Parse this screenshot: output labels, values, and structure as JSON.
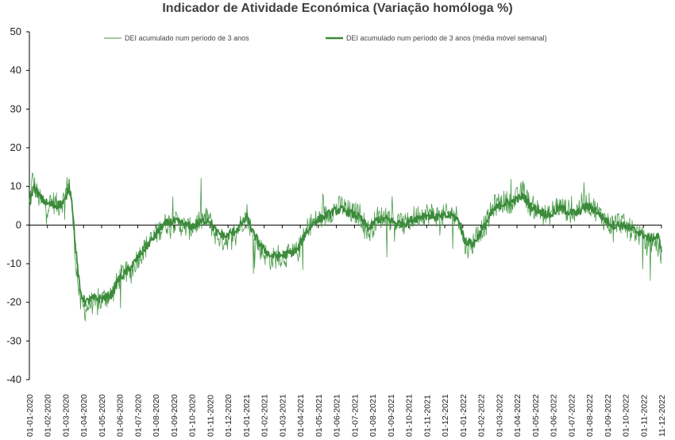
{
  "chart_data": {
    "type": "line",
    "title": "Indicador de Atividade Económica (Variação homóloga %)",
    "ylim": [
      -40,
      50
    ],
    "yticks": [
      -40,
      -30,
      -20,
      -10,
      0,
      10,
      20,
      30,
      40,
      50
    ],
    "x_start": "2020-01-01",
    "x_end": "2022-12-11",
    "x_tick_labels": [
      "01-01-2020",
      "01-02-2020",
      "01-03-2020",
      "01-04-2020",
      "01-05-2020",
      "01-06-2020",
      "01-07-2020",
      "01-08-2020",
      "01-09-2020",
      "01-10-2020",
      "01-11-2020",
      "01-12-2020",
      "01-01-2021",
      "01-02-2021",
      "01-03-2021",
      "01-04-2021",
      "01-05-2021",
      "01-06-2021",
      "01-07-2021",
      "01-08-2021",
      "01-09-2021",
      "01-10-2021",
      "01-11-2021",
      "01-12-2021",
      "01-01-2022",
      "01-02-2022",
      "01-03-2022",
      "01-04-2022",
      "01-05-2022",
      "01-06-2022",
      "01-07-2022",
      "01-08-2022",
      "01-09-2022",
      "01-10-2022",
      "01-11-2022",
      "11-12-2022"
    ],
    "legend_position": "top",
    "series": [
      {
        "name": "DEI acumulado num período de 3 anos",
        "color": "#4a9a4a",
        "style": "thin",
        "daily": true,
        "points": [
          [
            "2020-01-01",
            5
          ],
          [
            "2020-01-06",
            12
          ],
          [
            "2020-01-12",
            9
          ],
          [
            "2020-01-20",
            6
          ],
          [
            "2020-02-01",
            5
          ],
          [
            "2020-02-10",
            6
          ],
          [
            "2020-02-20",
            5
          ],
          [
            "2020-03-01",
            7
          ],
          [
            "2020-03-08",
            12
          ],
          [
            "2020-03-13",
            6
          ],
          [
            "2020-03-19",
            -8
          ],
          [
            "2020-03-27",
            -20
          ],
          [
            "2020-04-05",
            -22
          ],
          [
            "2020-04-15",
            -20
          ],
          [
            "2020-04-25",
            -21
          ],
          [
            "2020-05-05",
            -19
          ],
          [
            "2020-05-20",
            -18
          ],
          [
            "2020-06-01",
            -14
          ],
          [
            "2020-06-10",
            -12
          ],
          [
            "2020-06-20",
            -13
          ],
          [
            "2020-07-01",
            -9
          ],
          [
            "2020-07-15",
            -6
          ],
          [
            "2020-08-01",
            -3
          ],
          [
            "2020-08-15",
            0
          ],
          [
            "2020-09-01",
            1
          ],
          [
            "2020-09-15",
            0
          ],
          [
            "2020-10-01",
            -1
          ],
          [
            "2020-10-15",
            1
          ],
          [
            "2020-11-01",
            2
          ],
          [
            "2020-11-10",
            -2
          ],
          [
            "2020-11-25",
            -4
          ],
          [
            "2020-12-10",
            -3
          ],
          [
            "2020-12-25",
            0
          ],
          [
            "2021-01-05",
            3
          ],
          [
            "2021-01-15",
            -3
          ],
          [
            "2021-02-01",
            -7
          ],
          [
            "2021-02-15",
            -9
          ],
          [
            "2021-03-01",
            -8
          ],
          [
            "2021-03-15",
            -8
          ],
          [
            "2021-04-01",
            -7
          ],
          [
            "2021-04-10",
            -4
          ],
          [
            "2021-04-20",
            0
          ],
          [
            "2021-05-01",
            1
          ],
          [
            "2021-05-15",
            2
          ],
          [
            "2021-06-01",
            4
          ],
          [
            "2021-06-15",
            5
          ],
          [
            "2021-07-01",
            3
          ],
          [
            "2021-07-15",
            3
          ],
          [
            "2021-08-01",
            -2
          ],
          [
            "2021-08-15",
            2
          ],
          [
            "2021-09-01",
            2
          ],
          [
            "2021-09-15",
            1
          ],
          [
            "2021-10-01",
            0
          ],
          [
            "2021-10-15",
            2
          ],
          [
            "2021-11-01",
            3
          ],
          [
            "2021-11-15",
            3
          ],
          [
            "2021-12-01",
            2
          ],
          [
            "2021-12-15",
            3
          ],
          [
            "2022-01-01",
            2
          ],
          [
            "2022-01-10",
            -5
          ],
          [
            "2022-01-20",
            -6
          ],
          [
            "2022-02-01",
            -2
          ],
          [
            "2022-02-15",
            0
          ],
          [
            "2022-03-01",
            5
          ],
          [
            "2022-03-15",
            6
          ],
          [
            "2022-04-01",
            6
          ],
          [
            "2022-04-10",
            7
          ],
          [
            "2022-04-20",
            9
          ],
          [
            "2022-05-01",
            5
          ],
          [
            "2022-05-15",
            4
          ],
          [
            "2022-06-01",
            2
          ],
          [
            "2022-06-15",
            5
          ],
          [
            "2022-07-01",
            4
          ],
          [
            "2022-07-15",
            3
          ],
          [
            "2022-08-01",
            6
          ],
          [
            "2022-08-15",
            5
          ],
          [
            "2022-09-01",
            2
          ],
          [
            "2022-09-15",
            0
          ],
          [
            "2022-10-01",
            1
          ],
          [
            "2022-10-15",
            -1
          ],
          [
            "2022-11-01",
            -2
          ],
          [
            "2022-11-15",
            -5
          ],
          [
            "2022-12-01",
            -4
          ],
          [
            "2022-12-11",
            -8
          ]
        ]
      },
      {
        "name": "DEI acumulado num período de 3 anos (média móvel semanal)",
        "color": "#3a8a3a",
        "style": "thick",
        "daily": false,
        "points": [
          [
            "2020-01-01",
            5
          ],
          [
            "2020-01-08",
            10
          ],
          [
            "2020-01-20",
            7
          ],
          [
            "2020-02-01",
            5.5
          ],
          [
            "2020-02-15",
            5
          ],
          [
            "2020-03-01",
            6
          ],
          [
            "2020-03-08",
            10
          ],
          [
            "2020-03-13",
            7
          ],
          [
            "2020-03-19",
            -5
          ],
          [
            "2020-03-27",
            -17
          ],
          [
            "2020-04-05",
            -20
          ],
          [
            "2020-04-20",
            -19
          ],
          [
            "2020-05-05",
            -19
          ],
          [
            "2020-05-20",
            -18
          ],
          [
            "2020-06-01",
            -14
          ],
          [
            "2020-06-15",
            -12
          ],
          [
            "2020-07-01",
            -9
          ],
          [
            "2020-07-15",
            -6
          ],
          [
            "2020-08-01",
            -3
          ],
          [
            "2020-08-15",
            0
          ],
          [
            "2020-09-01",
            1
          ],
          [
            "2020-09-15",
            0.5
          ],
          [
            "2020-10-01",
            -0.5
          ],
          [
            "2020-10-15",
            0.5
          ],
          [
            "2020-11-01",
            1.5
          ],
          [
            "2020-11-15",
            -2
          ],
          [
            "2020-12-01",
            -3
          ],
          [
            "2020-12-20",
            -1
          ],
          [
            "2021-01-05",
            2
          ],
          [
            "2021-01-15",
            -2
          ],
          [
            "2021-02-01",
            -6
          ],
          [
            "2021-02-15",
            -8
          ],
          [
            "2021-03-01",
            -8
          ],
          [
            "2021-03-15",
            -7.5
          ],
          [
            "2021-04-01",
            -6.5
          ],
          [
            "2021-04-15",
            -2
          ],
          [
            "2021-05-01",
            1
          ],
          [
            "2021-05-15",
            2
          ],
          [
            "2021-06-01",
            3.5
          ],
          [
            "2021-06-15",
            4
          ],
          [
            "2021-07-01",
            3
          ],
          [
            "2021-07-15",
            2
          ],
          [
            "2021-08-01",
            -1
          ],
          [
            "2021-08-15",
            1.5
          ],
          [
            "2021-09-01",
            1.5
          ],
          [
            "2021-09-15",
            0.5
          ],
          [
            "2021-10-01",
            0.5
          ],
          [
            "2021-10-15",
            1.5
          ],
          [
            "2021-11-01",
            2.5
          ],
          [
            "2021-11-15",
            2.5
          ],
          [
            "2021-12-01",
            2
          ],
          [
            "2021-12-20",
            2.5
          ],
          [
            "2022-01-01",
            1
          ],
          [
            "2022-01-10",
            -4
          ],
          [
            "2022-01-25",
            -5
          ],
          [
            "2022-02-10",
            -1
          ],
          [
            "2022-03-01",
            4
          ],
          [
            "2022-03-15",
            5.5
          ],
          [
            "2022-04-01",
            6
          ],
          [
            "2022-04-20",
            7.5
          ],
          [
            "2022-05-05",
            4.5
          ],
          [
            "2022-05-20",
            3.5
          ],
          [
            "2022-06-05",
            2.5
          ],
          [
            "2022-06-20",
            4.5
          ],
          [
            "2022-07-05",
            3.5
          ],
          [
            "2022-07-20",
            3
          ],
          [
            "2022-08-05",
            5
          ],
          [
            "2022-08-20",
            4
          ],
          [
            "2022-09-05",
            1.5
          ],
          [
            "2022-09-20",
            0
          ],
          [
            "2022-10-05",
            0
          ],
          [
            "2022-10-20",
            -1
          ],
          [
            "2022-11-05",
            -2
          ],
          [
            "2022-11-20",
            -3.5
          ],
          [
            "2022-12-05",
            -3
          ],
          [
            "2022-12-11",
            -6
          ]
        ]
      }
    ]
  }
}
